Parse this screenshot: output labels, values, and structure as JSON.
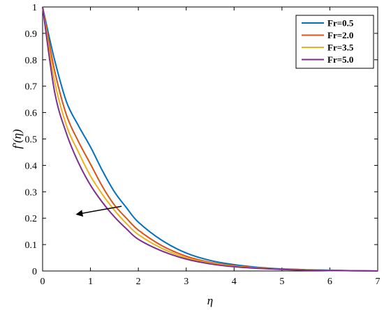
{
  "chart_data": {
    "type": "line",
    "xlabel": "η",
    "ylabel": "f′(η)",
    "xlim": [
      0,
      7
    ],
    "ylim": [
      0,
      1
    ],
    "x_ticks": [
      "0",
      "1",
      "2",
      "3",
      "4",
      "5",
      "6",
      "7"
    ],
    "y_ticks": [
      "0",
      "0.1",
      "0.2",
      "0.3",
      "0.4",
      "0.5",
      "0.6",
      "0.7",
      "0.8",
      "0.9",
      "1"
    ],
    "grid": false,
    "legend_position": "top-right",
    "x": [
      0,
      0.25,
      0.5,
      0.75,
      1,
      1.25,
      1.5,
      1.75,
      2,
      2.5,
      3,
      3.5,
      4,
      4.5,
      5,
      5.5,
      6,
      6.5,
      7
    ],
    "series": [
      {
        "name": "Fr=0.5",
        "color": "#0072BD",
        "values": [
          1,
          0.8,
          0.64,
          0.55,
          0.47,
          0.38,
          0.3,
          0.24,
          0.185,
          0.115,
          0.068,
          0.04,
          0.024,
          0.014,
          0.008,
          0.005,
          0.003,
          0.001,
          0.0
        ]
      },
      {
        "name": "Fr=2.0",
        "color": "#D95319",
        "values": [
          1,
          0.76,
          0.59,
          0.49,
          0.405,
          0.32,
          0.25,
          0.2,
          0.155,
          0.095,
          0.056,
          0.033,
          0.02,
          0.012,
          0.007,
          0.004,
          0.002,
          0.001,
          0.0
        ]
      },
      {
        "name": "Fr=3.5",
        "color": "#EDB120",
        "values": [
          1,
          0.72,
          0.55,
          0.45,
          0.36,
          0.29,
          0.23,
          0.18,
          0.138,
          0.085,
          0.05,
          0.03,
          0.018,
          0.011,
          0.006,
          0.004,
          0.002,
          0.001,
          0.0
        ]
      },
      {
        "name": "Fr=5.0",
        "color": "#7E2F8E",
        "values": [
          1,
          0.68,
          0.52,
          0.41,
          0.325,
          0.26,
          0.205,
          0.16,
          0.12,
          0.075,
          0.045,
          0.027,
          0.016,
          0.01,
          0.006,
          0.003,
          0.002,
          0.001,
          0.0
        ]
      }
    ],
    "annotations": [
      {
        "type": "arrow",
        "from": [
          1.65,
          0.245
        ],
        "to": [
          0.72,
          0.215
        ]
      }
    ]
  }
}
